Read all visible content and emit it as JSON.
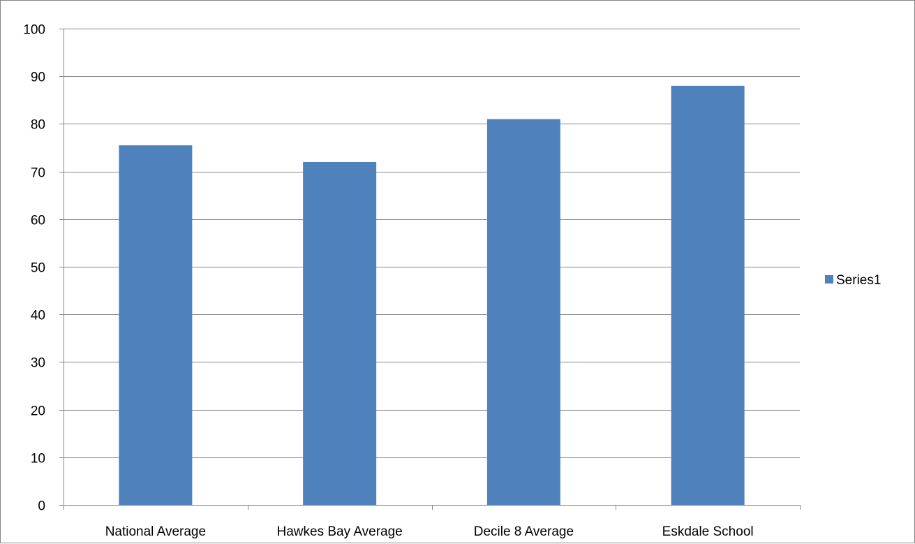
{
  "chart_data": {
    "type": "bar",
    "categories": [
      "National Average",
      "Hawkes Bay Average",
      "Decile 8 Average",
      "Eskdale School"
    ],
    "series": [
      {
        "name": "Series1",
        "values": [
          75.5,
          72,
          81,
          88
        ],
        "color": "#4F81BD"
      }
    ],
    "title": "",
    "xlabel": "",
    "ylabel": "",
    "ylim": [
      0,
      100
    ],
    "yticks": [
      0,
      10,
      20,
      30,
      40,
      50,
      60,
      70,
      80,
      90,
      100
    ],
    "grid": true,
    "gridline_color": "#868686",
    "legend_position": "right"
  }
}
